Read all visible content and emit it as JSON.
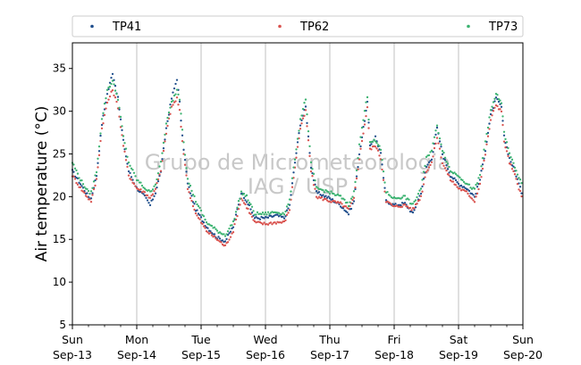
{
  "chart_data": {
    "type": "scatter",
    "title": "",
    "xlabel": "",
    "ylabel": "Air temperature (°C)",
    "ylim": [
      5,
      38
    ],
    "yticks": [
      5,
      10,
      15,
      20,
      25,
      30,
      35
    ],
    "xlim": [
      "2015-09-13 00:00",
      "2015-09-20 00:00"
    ],
    "xticks": [
      {
        "line1": "Sun",
        "line2": "Sep-13"
      },
      {
        "line1": "Mon",
        "line2": "Sep-14"
      },
      {
        "line1": "Tue",
        "line2": "Sep-15"
      },
      {
        "line1": "Wed",
        "line2": "Sep-16"
      },
      {
        "line1": "Thu",
        "line2": "Sep-17"
      },
      {
        "line1": "Fri",
        "line2": "Sep-18"
      },
      {
        "line1": "Sat",
        "line2": "Sep-19"
      },
      {
        "line1": "Sun",
        "line2": "Sep-20"
      }
    ],
    "grid": "vertical",
    "legend_position": "top",
    "watermark": [
      "Grupo de Micrometeorologia",
      "IAG / USP"
    ],
    "series": [
      {
        "name": "TP41",
        "color": "#1f4e8c",
        "points": [
          [
            "2015-09-13 00:00",
            23.0
          ],
          [
            "2015-09-13 03:00",
            21.5
          ],
          [
            "2015-09-13 06:00",
            20.0
          ],
          [
            "2015-09-13 07:00",
            19.8
          ],
          [
            "2015-09-13 09:00",
            22.5
          ],
          [
            "2015-09-13 11:00",
            28.5
          ],
          [
            "2015-09-13 13:00",
            32.0
          ],
          [
            "2015-09-13 15:00",
            34.5
          ],
          [
            "2015-09-13 17:00",
            31.5
          ],
          [
            "2015-09-13 19:00",
            26.5
          ],
          [
            "2015-09-13 21:00",
            23.0
          ],
          [
            "2015-09-14 00:00",
            21.0
          ],
          [
            "2015-09-14 03:00",
            20.0
          ],
          [
            "2015-09-14 05:00",
            19.0
          ],
          [
            "2015-09-14 07:00",
            20.5
          ],
          [
            "2015-09-14 09:00",
            23.0
          ],
          [
            "2015-09-14 11:00",
            28.0
          ],
          [
            "2015-09-14 13:00",
            31.5
          ],
          [
            "2015-09-14 15:00",
            33.8
          ],
          [
            "2015-09-14 16:00",
            31.0
          ],
          [
            "2015-09-14 17:00",
            27.0
          ],
          [
            "2015-09-14 19:00",
            21.5
          ],
          [
            "2015-09-14 22:00",
            18.5
          ],
          [
            "2015-09-15 02:00",
            16.5
          ],
          [
            "2015-09-15 06:00",
            15.2
          ],
          [
            "2015-09-15 09:00",
            14.8
          ],
          [
            "2015-09-15 12:00",
            16.5
          ],
          [
            "2015-09-15 15:00",
            20.5
          ],
          [
            "2015-09-15 17:00",
            19.5
          ],
          [
            "2015-09-15 20:00",
            17.5
          ],
          [
            "2015-09-16 00:00",
            17.5
          ],
          [
            "2015-09-16 04:00",
            17.8
          ],
          [
            "2015-09-16 07:00",
            17.5
          ],
          [
            "2015-09-16 09:00",
            19.0
          ],
          [
            "2015-09-16 11:00",
            24.0
          ],
          [
            "2015-09-16 13:00",
            28.5
          ],
          [
            "2015-09-16 15:00",
            30.5
          ],
          [
            "2015-09-16 16:00",
            27.0
          ],
          [
            "2015-09-16 17:00",
            23.5
          ],
          [
            "2015-09-16 19:00",
            20.5
          ],
          [
            "2015-09-17 00:00",
            19.8
          ],
          [
            "2015-09-17 04:00",
            19.0
          ],
          [
            "2015-09-17 07:00",
            18.0
          ],
          [
            "2015-09-17 09:00",
            19.5
          ],
          [
            "2015-09-17 11:00",
            25.0
          ],
          [
            "2015-09-17 13:00",
            29.0
          ],
          [
            "2015-09-17 14:00",
            31.0
          ],
          [
            "2015-09-17 15:00",
            26.0
          ],
          [
            "2015-09-17 17:00",
            27.0
          ],
          [
            "2015-09-17 19:00",
            25.0
          ],
          [
            "2015-09-17 21:00",
            19.5
          ],
          [
            "2015-09-18 00:00",
            19.0
          ],
          [
            "2015-09-18 04:00",
            19.2
          ],
          [
            "2015-09-18 07:00",
            18.0
          ],
          [
            "2015-09-18 10:00",
            20.5
          ],
          [
            "2015-09-18 12:00",
            23.5
          ],
          [
            "2015-09-18 14:00",
            24.5
          ],
          [
            "2015-09-18 16:00",
            28.0
          ],
          [
            "2015-09-18 18:00",
            25.0
          ],
          [
            "2015-09-18 21:00",
            22.5
          ],
          [
            "2015-09-19 00:00",
            21.5
          ],
          [
            "2015-09-19 03:00",
            21.0
          ],
          [
            "2015-09-19 06:00",
            20.0
          ],
          [
            "2015-09-19 08:00",
            22.0
          ],
          [
            "2015-09-19 10:00",
            25.5
          ],
          [
            "2015-09-19 12:00",
            29.5
          ],
          [
            "2015-09-19 14:00",
            31.5
          ],
          [
            "2015-09-19 16:00",
            30.5
          ],
          [
            "2015-09-19 17:00",
            27.0
          ],
          [
            "2015-09-19 19:00",
            24.5
          ],
          [
            "2015-09-19 21:00",
            23.0
          ],
          [
            "2015-09-20 00:00",
            20.0
          ]
        ]
      },
      {
        "name": "TP62",
        "color": "#d9534f",
        "points": [
          [
            "2015-09-13 00:00",
            22.5
          ],
          [
            "2015-09-13 03:00",
            21.0
          ],
          [
            "2015-09-13 06:00",
            19.8
          ],
          [
            "2015-09-13 07:00",
            19.5
          ],
          [
            "2015-09-13 09:00",
            22.0
          ],
          [
            "2015-09-13 11:00",
            28.0
          ],
          [
            "2015-09-13 13:00",
            31.0
          ],
          [
            "2015-09-13 15:00",
            32.5
          ],
          [
            "2015-09-13 17:00",
            30.5
          ],
          [
            "2015-09-13 19:00",
            26.0
          ],
          [
            "2015-09-13 21:00",
            22.5
          ],
          [
            "2015-09-14 00:00",
            21.0
          ],
          [
            "2015-09-14 03:00",
            20.5
          ],
          [
            "2015-09-14 05:00",
            19.8
          ],
          [
            "2015-09-14 07:00",
            21.0
          ],
          [
            "2015-09-14 09:00",
            23.0
          ],
          [
            "2015-09-14 11:00",
            27.5
          ],
          [
            "2015-09-14 13:00",
            30.5
          ],
          [
            "2015-09-14 15:00",
            31.5
          ],
          [
            "2015-09-14 16:00",
            30.0
          ],
          [
            "2015-09-14 17:00",
            26.5
          ],
          [
            "2015-09-14 19:00",
            21.0
          ],
          [
            "2015-09-14 22:00",
            18.0
          ],
          [
            "2015-09-15 02:00",
            16.0
          ],
          [
            "2015-09-15 06:00",
            15.0
          ],
          [
            "2015-09-15 09:00",
            14.2
          ],
          [
            "2015-09-15 12:00",
            16.0
          ],
          [
            "2015-09-15 15:00",
            19.8
          ],
          [
            "2015-09-15 17:00",
            18.8
          ],
          [
            "2015-09-15 20:00",
            17.0
          ],
          [
            "2015-09-16 00:00",
            16.8
          ],
          [
            "2015-09-16 04:00",
            17.0
          ],
          [
            "2015-09-16 07:00",
            17.0
          ],
          [
            "2015-09-16 09:00",
            18.5
          ],
          [
            "2015-09-16 11:00",
            23.5
          ],
          [
            "2015-09-16 13:00",
            28.0
          ],
          [
            "2015-09-16 15:00",
            30.0
          ],
          [
            "2015-09-16 16:00",
            26.5
          ],
          [
            "2015-09-16 17:00",
            23.0
          ],
          [
            "2015-09-16 19:00",
            20.0
          ],
          [
            "2015-09-17 00:00",
            19.5
          ],
          [
            "2015-09-17 04:00",
            19.2
          ],
          [
            "2015-09-17 07:00",
            18.5
          ],
          [
            "2015-09-17 09:00",
            19.8
          ],
          [
            "2015-09-17 11:00",
            24.5
          ],
          [
            "2015-09-17 13:00",
            28.5
          ],
          [
            "2015-09-17 14:00",
            30.5
          ],
          [
            "2015-09-17 15:00",
            25.5
          ],
          [
            "2015-09-17 17:00",
            26.0
          ],
          [
            "2015-09-17 19:00",
            24.5
          ],
          [
            "2015-09-17 21:00",
            19.5
          ],
          [
            "2015-09-18 00:00",
            18.8
          ],
          [
            "2015-09-18 04:00",
            19.0
          ],
          [
            "2015-09-18 07:00",
            18.5
          ],
          [
            "2015-09-18 10:00",
            20.0
          ],
          [
            "2015-09-18 12:00",
            23.0
          ],
          [
            "2015-09-18 14:00",
            24.0
          ],
          [
            "2015-09-18 16:00",
            27.0
          ],
          [
            "2015-09-18 18:00",
            24.0
          ],
          [
            "2015-09-18 21:00",
            22.0
          ],
          [
            "2015-09-19 00:00",
            21.0
          ],
          [
            "2015-09-19 03:00",
            20.5
          ],
          [
            "2015-09-19 06:00",
            19.5
          ],
          [
            "2015-09-19 08:00",
            21.5
          ],
          [
            "2015-09-19 10:00",
            25.0
          ],
          [
            "2015-09-19 12:00",
            29.0
          ],
          [
            "2015-09-19 14:00",
            30.8
          ],
          [
            "2015-09-19 16:00",
            30.0
          ],
          [
            "2015-09-19 17:00",
            26.5
          ],
          [
            "2015-09-19 19:00",
            24.0
          ],
          [
            "2015-09-19 21:00",
            22.5
          ],
          [
            "2015-09-20 00:00",
            19.5
          ]
        ]
      },
      {
        "name": "TP73",
        "color": "#3cb371",
        "points": [
          [
            "2015-09-13 00:00",
            24.0
          ],
          [
            "2015-09-13 03:00",
            22.0
          ],
          [
            "2015-09-13 06:00",
            20.5
          ],
          [
            "2015-09-13 07:00",
            20.5
          ],
          [
            "2015-09-13 09:00",
            23.0
          ],
          [
            "2015-09-13 11:00",
            29.0
          ],
          [
            "2015-09-13 13:00",
            32.5
          ],
          [
            "2015-09-13 15:00",
            33.5
          ],
          [
            "2015-09-13 17:00",
            31.5
          ],
          [
            "2015-09-13 19:00",
            27.0
          ],
          [
            "2015-09-13 21:00",
            24.0
          ],
          [
            "2015-09-14 00:00",
            22.0
          ],
          [
            "2015-09-14 03:00",
            21.0
          ],
          [
            "2015-09-14 05:00",
            20.5
          ],
          [
            "2015-09-14 07:00",
            21.5
          ],
          [
            "2015-09-14 09:00",
            24.0
          ],
          [
            "2015-09-14 11:00",
            28.5
          ],
          [
            "2015-09-14 13:00",
            31.0
          ],
          [
            "2015-09-14 15:00",
            32.5
          ],
          [
            "2015-09-14 16:00",
            31.5
          ],
          [
            "2015-09-14 17:00",
            28.0
          ],
          [
            "2015-09-14 19:00",
            22.0
          ],
          [
            "2015-09-14 22:00",
            19.5
          ],
          [
            "2015-09-15 02:00",
            17.0
          ],
          [
            "2015-09-15 06:00",
            16.0
          ],
          [
            "2015-09-15 09:00",
            15.5
          ],
          [
            "2015-09-15 12:00",
            17.0
          ],
          [
            "2015-09-15 15:00",
            20.5
          ],
          [
            "2015-09-15 17:00",
            20.0
          ],
          [
            "2015-09-15 20:00",
            18.0
          ],
          [
            "2015-09-16 00:00",
            18.0
          ],
          [
            "2015-09-16 04:00",
            18.2
          ],
          [
            "2015-09-16 07:00",
            18.0
          ],
          [
            "2015-09-16 09:00",
            19.5
          ],
          [
            "2015-09-16 11:00",
            24.5
          ],
          [
            "2015-09-16 13:00",
            29.0
          ],
          [
            "2015-09-16 15:00",
            31.5
          ],
          [
            "2015-09-16 16:00",
            27.5
          ],
          [
            "2015-09-16 17:00",
            24.0
          ],
          [
            "2015-09-16 19:00",
            21.0
          ],
          [
            "2015-09-17 00:00",
            20.5
          ],
          [
            "2015-09-17 04:00",
            20.0
          ],
          [
            "2015-09-17 07:00",
            19.0
          ],
          [
            "2015-09-17 09:00",
            20.5
          ],
          [
            "2015-09-17 11:00",
            26.0
          ],
          [
            "2015-09-17 13:00",
            30.0
          ],
          [
            "2015-09-17 14:00",
            31.8
          ],
          [
            "2015-09-17 15:00",
            26.5
          ],
          [
            "2015-09-17 17:00",
            26.5
          ],
          [
            "2015-09-17 19:00",
            25.5
          ],
          [
            "2015-09-17 21:00",
            20.5
          ],
          [
            "2015-09-18 00:00",
            19.8
          ],
          [
            "2015-09-18 04:00",
            20.0
          ],
          [
            "2015-09-18 07:00",
            19.0
          ],
          [
            "2015-09-18 10:00",
            21.0
          ],
          [
            "2015-09-18 12:00",
            24.5
          ],
          [
            "2015-09-18 14:00",
            25.5
          ],
          [
            "2015-09-18 16:00",
            28.3
          ],
          [
            "2015-09-18 18:00",
            25.5
          ],
          [
            "2015-09-18 21:00",
            23.0
          ],
          [
            "2015-09-19 00:00",
            22.5
          ],
          [
            "2015-09-19 03:00",
            21.5
          ],
          [
            "2015-09-19 06:00",
            20.8
          ],
          [
            "2015-09-19 08:00",
            22.5
          ],
          [
            "2015-09-19 10:00",
            26.5
          ],
          [
            "2015-09-19 12:00",
            30.0
          ],
          [
            "2015-09-19 14:00",
            32.0
          ],
          [
            "2015-09-19 16:00",
            31.0
          ],
          [
            "2015-09-19 17:00",
            27.5
          ],
          [
            "2015-09-19 19:00",
            25.0
          ],
          [
            "2015-09-19 21:00",
            23.5
          ],
          [
            "2015-09-20 00:00",
            21.0
          ]
        ]
      }
    ]
  }
}
